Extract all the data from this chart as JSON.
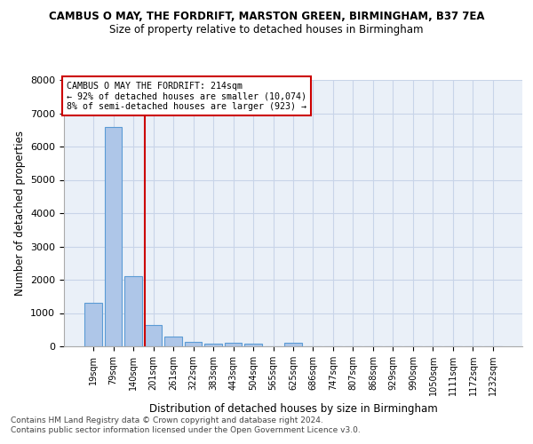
{
  "title1": "CAMBUS O MAY, THE FORDRIFT, MARSTON GREEN, BIRMINGHAM, B37 7EA",
  "title2": "Size of property relative to detached houses in Birmingham",
  "xlabel": "Distribution of detached houses by size in Birmingham",
  "ylabel": "Number of detached properties",
  "bar_color": "#aec6e8",
  "bar_edge_color": "#5b9bd5",
  "categories": [
    "19sqm",
    "79sqm",
    "140sqm",
    "201sqm",
    "261sqm",
    "322sqm",
    "383sqm",
    "443sqm",
    "504sqm",
    "565sqm",
    "625sqm",
    "686sqm",
    "747sqm",
    "807sqm",
    "868sqm",
    "929sqm",
    "990sqm",
    "1050sqm",
    "1111sqm",
    "1172sqm",
    "1232sqm"
  ],
  "values": [
    1300,
    6600,
    2100,
    650,
    290,
    140,
    90,
    100,
    85,
    0,
    100,
    0,
    0,
    0,
    0,
    0,
    0,
    0,
    0,
    0,
    0
  ],
  "property_line_x": 2.575,
  "annotation_text": "CAMBUS O MAY THE FORDRIFT: 214sqm\n← 92% of detached houses are smaller (10,074)\n8% of semi-detached houses are larger (923) →",
  "annotation_box_color": "#ffffff",
  "annotation_box_edge_color": "#cc0000",
  "vline_color": "#cc0000",
  "grid_color": "#c8d4e8",
  "background_color": "#eaf0f8",
  "footnote1": "Contains HM Land Registry data © Crown copyright and database right 2024.",
  "footnote2": "Contains public sector information licensed under the Open Government Licence v3.0.",
  "ylim": [
    0,
    8000
  ],
  "yticks": [
    0,
    1000,
    2000,
    3000,
    4000,
    5000,
    6000,
    7000,
    8000
  ]
}
